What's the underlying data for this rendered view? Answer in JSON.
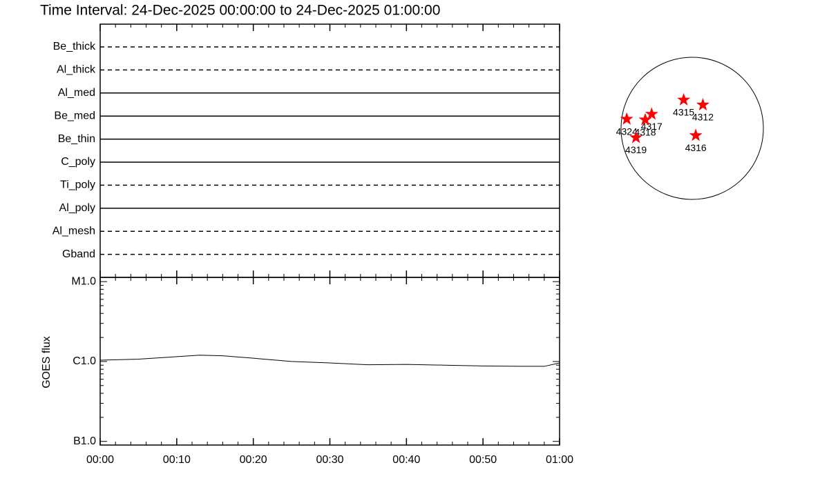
{
  "title": "Time Interval: 24-Dec-2025 00:00:00 to 24-Dec-2025 01:00:00",
  "chart_data": [
    {
      "type": "timeline",
      "categories": [
        "Be_thick",
        "Al_thick",
        "Al_med",
        "Be_med",
        "Be_thin",
        "C_poly",
        "Ti_poly",
        "Al_poly",
        "Al_mesh",
        "Gband"
      ],
      "styles": [
        "dashed",
        "dashed",
        "solid",
        "solid",
        "solid",
        "solid",
        "dashed",
        "solid",
        "dashed",
        "dashed"
      ],
      "color": "#000000"
    },
    {
      "type": "line",
      "ylabel": "GOES flux",
      "x": [
        0,
        5,
        10,
        13,
        16,
        20,
        25,
        30,
        35,
        40,
        45,
        50,
        55,
        58,
        60
      ],
      "values": [
        1.04e-06,
        1.07e-06,
        1.15e-06,
        1.2e-06,
        1.18e-06,
        1.1e-06,
        1e-06,
        9.6e-07,
        9.1e-07,
        9.2e-07,
        9e-07,
        8.8e-07,
        8.7e-07,
        8.7e-07,
        9.6e-07
      ],
      "xlim": [
        0,
        60
      ],
      "xticks": [
        {
          "value": 0,
          "label": "00:00"
        },
        {
          "value": 10,
          "label": "00:10"
        },
        {
          "value": 20,
          "label": "00:20"
        },
        {
          "value": 30,
          "label": "00:30"
        },
        {
          "value": 40,
          "label": "00:40"
        },
        {
          "value": 50,
          "label": "00:50"
        },
        {
          "value": 60,
          "label": "01:00"
        }
      ],
      "ylim": [
        9e-08,
        1.13e-05
      ],
      "yticks": [
        {
          "value": 1e-05,
          "label": "M1.0"
        },
        {
          "value": 1e-06,
          "label": "C1.0"
        },
        {
          "value": 1e-07,
          "label": "B1.0"
        }
      ],
      "log_scale": true,
      "color": "#000000"
    },
    {
      "type": "scatter",
      "labels": [
        "4315",
        "4312",
        "4317",
        "4318",
        "4324",
        "4319",
        "4316"
      ],
      "x": [
        -0.12,
        0.15,
        -0.57,
        -0.66,
        -0.92,
        -0.79,
        0.05
      ],
      "y": [
        0.4,
        0.33,
        0.2,
        0.12,
        0.13,
        -0.13,
        -0.1
      ],
      "xlim": [
        -1,
        1
      ],
      "ylim": [
        -1,
        1
      ],
      "color": "#ff0000"
    }
  ]
}
